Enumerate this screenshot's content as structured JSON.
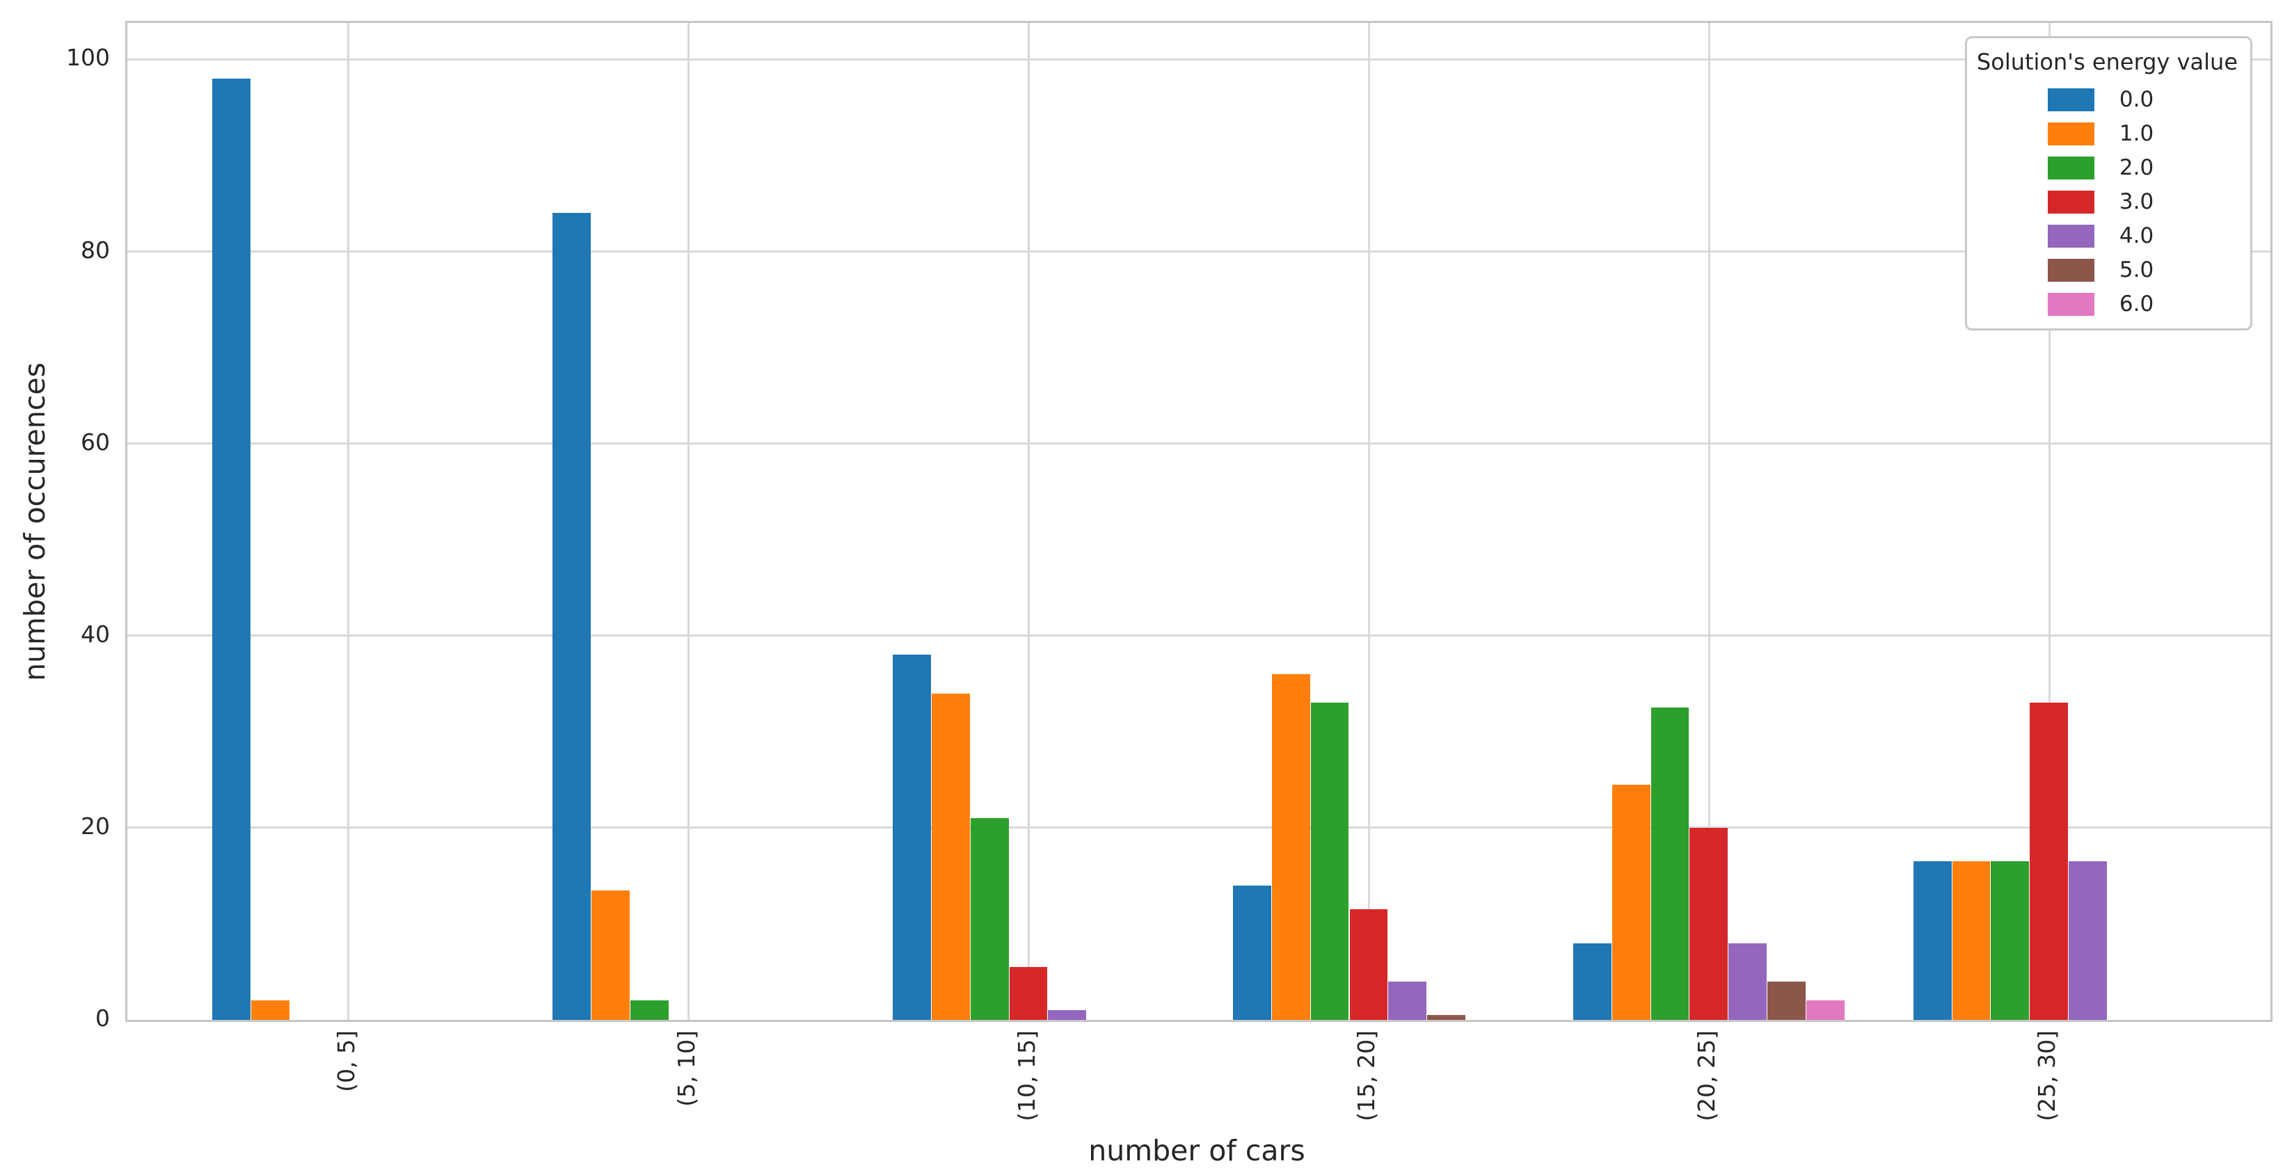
{
  "chart_data": {
    "type": "bar",
    "title": "",
    "xlabel": "number of cars",
    "ylabel": "number of occurences",
    "categories": [
      "(0, 5]",
      "(5, 10]",
      "(10, 15]",
      "(15, 20]",
      "(20, 25]",
      "(25, 30]"
    ],
    "series": [
      {
        "name": "0.0",
        "color": "#1f77b4",
        "values": [
          98,
          84,
          38,
          14,
          8,
          16.5
        ]
      },
      {
        "name": "1.0",
        "color": "#ff7f0e",
        "values": [
          2,
          13.5,
          34,
          36,
          24.5,
          16.5
        ]
      },
      {
        "name": "2.0",
        "color": "#2ca02c",
        "values": [
          0,
          2,
          21,
          33,
          32.5,
          16.5
        ]
      },
      {
        "name": "3.0",
        "color": "#d62728",
        "values": [
          0,
          0,
          5.5,
          11.5,
          20,
          33
        ]
      },
      {
        "name": "4.0",
        "color": "#9467bd",
        "values": [
          0,
          0,
          1,
          4,
          8,
          16.5
        ]
      },
      {
        "name": "5.0",
        "color": "#8c564b",
        "values": [
          0,
          0,
          0,
          0.5,
          4,
          0
        ]
      },
      {
        "name": "6.0",
        "color": "#e377c2",
        "values": [
          0,
          0,
          0,
          0,
          2,
          0
        ]
      }
    ],
    "yticks": [
      0,
      20,
      40,
      60,
      80,
      100
    ],
    "ylim": [
      0,
      103.8
    ],
    "xlim": [
      -0.65,
      5.65
    ],
    "group_width": 0.8,
    "grid": "both",
    "legend": {
      "title": "Solution's energy value",
      "position": "upper right",
      "labels": [
        "0.0",
        "1.0",
        "2.0",
        "3.0",
        "4.0",
        "5.0",
        "6.0"
      ]
    }
  }
}
